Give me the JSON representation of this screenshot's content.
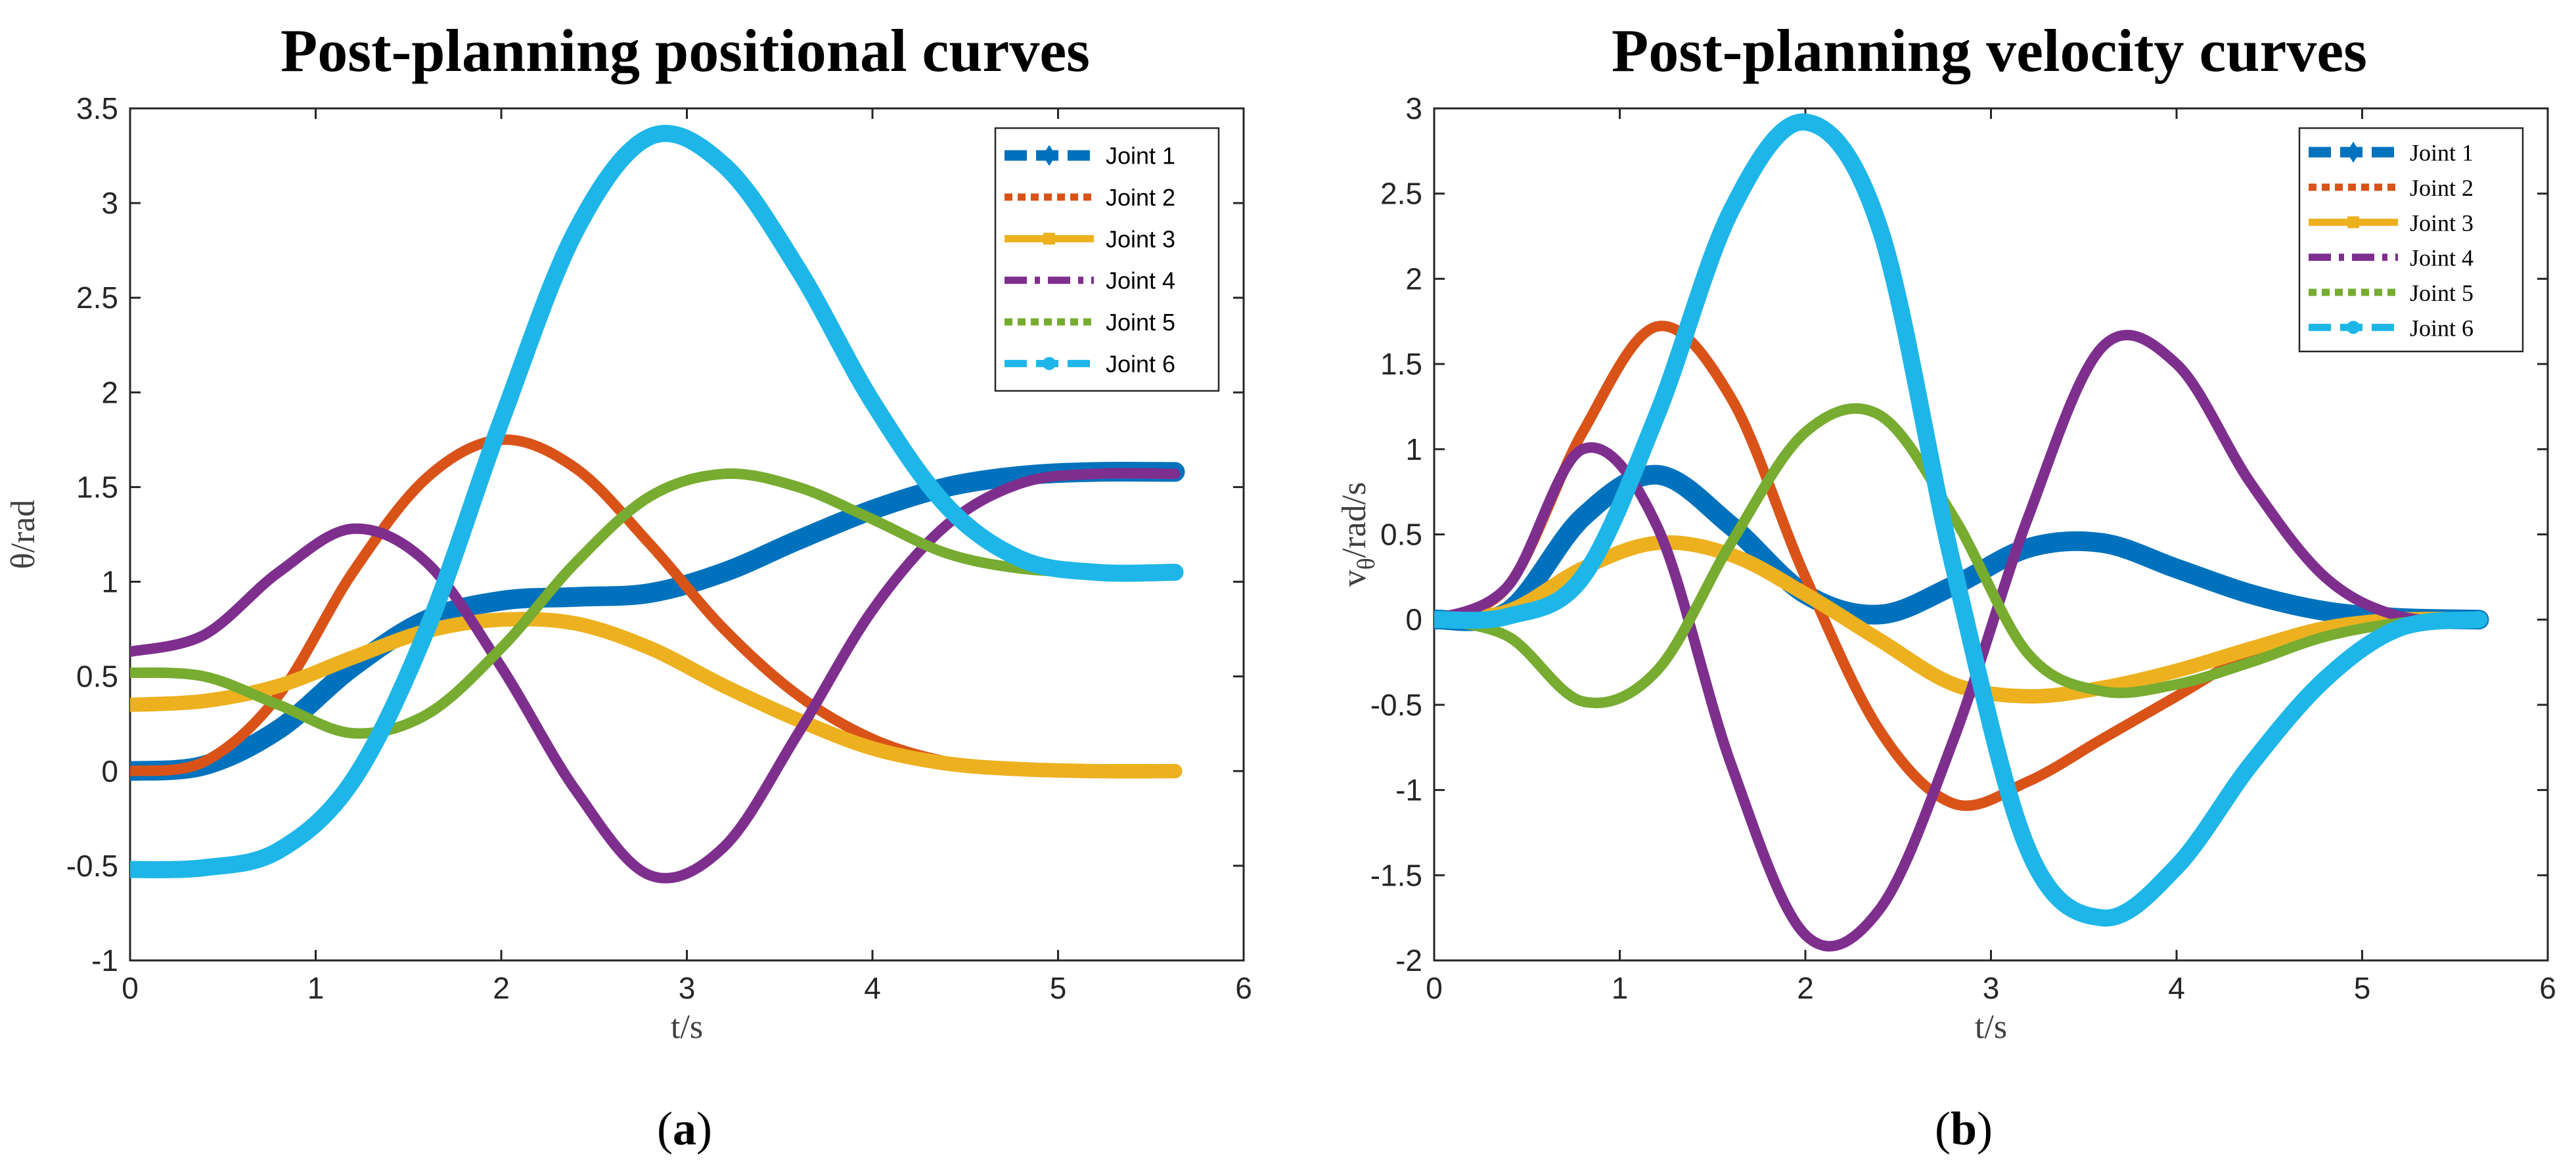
{
  "chart_data": [
    {
      "type": "line",
      "title": "Post-planning positional curves",
      "xlabel": "t/s",
      "ylabel": "θ/rad",
      "xlim": [
        0,
        6
      ],
      "ylim": [
        -1,
        3.5
      ],
      "xticks": [
        "0",
        "1",
        "2",
        "3",
        "4",
        "5",
        "6"
      ],
      "yticks": [
        "-1",
        "-0.5",
        "0",
        "0.5",
        "1",
        "1.5",
        "2",
        "2.5",
        "3",
        "3.5"
      ],
      "legend_position": "top-right",
      "caption_label": "a",
      "series": [
        {
          "name": "Joint 1",
          "color": "#0072BD",
          "x": [
            0,
            0.4,
            0.8,
            1.2,
            1.6,
            2.0,
            2.4,
            2.8,
            3.2,
            3.6,
            4.0,
            4.4,
            4.8,
            5.2,
            5.63
          ],
          "values": [
            0,
            0.03,
            0.22,
            0.55,
            0.8,
            0.9,
            0.92,
            0.94,
            1.05,
            1.22,
            1.38,
            1.5,
            1.56,
            1.58,
            1.58
          ]
        },
        {
          "name": "Joint 2",
          "color": "#D95319",
          "x": [
            0,
            0.4,
            0.8,
            1.2,
            1.6,
            2.0,
            2.4,
            2.8,
            3.2,
            3.6,
            4.0,
            4.4,
            4.8,
            5.2,
            5.63
          ],
          "values": [
            0,
            0.05,
            0.4,
            1.05,
            1.55,
            1.75,
            1.6,
            1.2,
            0.75,
            0.4,
            0.17,
            0.05,
            0.01,
            0,
            0
          ]
        },
        {
          "name": "Joint 3",
          "color": "#EDB120",
          "x": [
            0,
            0.4,
            0.8,
            1.2,
            1.6,
            2.0,
            2.4,
            2.8,
            3.2,
            3.6,
            4.0,
            4.4,
            4.8,
            5.2,
            5.63
          ],
          "values": [
            0.35,
            0.37,
            0.45,
            0.6,
            0.74,
            0.8,
            0.78,
            0.65,
            0.45,
            0.27,
            0.12,
            0.04,
            0.01,
            0,
            0
          ]
        },
        {
          "name": "Joint 4",
          "color": "#7E2F8E",
          "x": [
            0,
            0.4,
            0.8,
            1.2,
            1.6,
            2.0,
            2.4,
            2.8,
            3.2,
            3.6,
            4.0,
            4.4,
            4.8,
            5.2,
            5.63
          ],
          "values": [
            0.63,
            0.72,
            1.05,
            1.28,
            1.1,
            0.55,
            -0.1,
            -0.55,
            -0.4,
            0.2,
            0.85,
            1.3,
            1.52,
            1.57,
            1.57
          ]
        },
        {
          "name": "Joint 5",
          "color": "#77AC30",
          "x": [
            0,
            0.4,
            0.8,
            1.2,
            1.6,
            2.0,
            2.4,
            2.8,
            3.2,
            3.6,
            4.0,
            4.4,
            4.8,
            5.2,
            5.63
          ],
          "values": [
            0.52,
            0.5,
            0.35,
            0.2,
            0.3,
            0.65,
            1.1,
            1.45,
            1.57,
            1.5,
            1.33,
            1.15,
            1.07,
            1.05,
            1.05
          ]
        },
        {
          "name": "Joint 6",
          "color": "#1EB6E8",
          "x": [
            0,
            0.4,
            0.8,
            1.2,
            1.6,
            2.0,
            2.4,
            2.8,
            3.2,
            3.6,
            4.0,
            4.4,
            4.8,
            5.2,
            5.63
          ],
          "values": [
            -0.52,
            -0.51,
            -0.42,
            -0.05,
            0.75,
            1.85,
            2.85,
            3.35,
            3.2,
            2.65,
            1.95,
            1.4,
            1.12,
            1.05,
            1.05
          ]
        }
      ]
    },
    {
      "type": "line",
      "title": "Post-planning velocity curves",
      "xlabel": "t/s",
      "ylabel": "vθ/rad/s",
      "ylabel_main": "v",
      "ylabel_sub": "θ",
      "ylabel_rest": "/rad/s",
      "xlim": [
        0,
        6
      ],
      "ylim": [
        -2,
        3
      ],
      "xticks": [
        "0",
        "1",
        "2",
        "3",
        "4",
        "5",
        "6"
      ],
      "yticks": [
        "-2",
        "-1.5",
        "-1",
        "-0.5",
        "0",
        "0.5",
        "1",
        "1.5",
        "2",
        "2.5",
        "3"
      ],
      "legend_position": "top-right",
      "caption_label": "b",
      "series": [
        {
          "name": "Joint 1",
          "color": "#0072BD",
          "x": [
            0,
            0.4,
            0.8,
            1.2,
            1.6,
            2.0,
            2.4,
            2.8,
            3.2,
            3.6,
            4.0,
            4.4,
            4.8,
            5.2,
            5.63
          ],
          "values": [
            0,
            0.05,
            0.6,
            0.85,
            0.55,
            0.15,
            0.03,
            0.2,
            0.42,
            0.45,
            0.3,
            0.15,
            0.05,
            0.01,
            0
          ]
        },
        {
          "name": "Joint 2",
          "color": "#D95319",
          "x": [
            0,
            0.4,
            0.8,
            1.2,
            1.6,
            2.0,
            2.4,
            2.8,
            3.2,
            3.6,
            4.0,
            4.4,
            4.8,
            5.2,
            5.63
          ],
          "values": [
            0,
            0.2,
            1.1,
            1.72,
            1.3,
            0.25,
            -0.65,
            -1.08,
            -0.95,
            -0.7,
            -0.45,
            -0.2,
            -0.05,
            0,
            0
          ]
        },
        {
          "name": "Joint 3",
          "color": "#EDB120",
          "x": [
            0,
            0.4,
            0.8,
            1.2,
            1.6,
            2.0,
            2.4,
            2.8,
            3.2,
            3.6,
            4.0,
            4.4,
            4.8,
            5.2,
            5.63
          ],
          "values": [
            0,
            0.05,
            0.3,
            0.45,
            0.38,
            0.15,
            -0.12,
            -0.38,
            -0.45,
            -0.4,
            -0.3,
            -0.17,
            -0.05,
            0,
            0
          ]
        },
        {
          "name": "Joint 4",
          "color": "#7E2F8E",
          "x": [
            0,
            0.4,
            0.8,
            1.2,
            1.6,
            2.0,
            2.4,
            2.8,
            3.2,
            3.6,
            4.0,
            4.4,
            4.8,
            5.2,
            5.63
          ],
          "values": [
            0,
            0.2,
            1.0,
            0.55,
            -0.85,
            -1.85,
            -1.7,
            -0.7,
            0.6,
            1.6,
            1.5,
            0.8,
            0.25,
            0.02,
            0
          ]
        },
        {
          "name": "Joint 5",
          "color": "#77AC30",
          "x": [
            0,
            0.4,
            0.8,
            1.2,
            1.6,
            2.0,
            2.4,
            2.8,
            3.2,
            3.6,
            4.0,
            4.4,
            4.8,
            5.2,
            5.63
          ],
          "values": [
            0,
            -0.1,
            -0.48,
            -0.3,
            0.45,
            1.1,
            1.2,
            0.6,
            -0.2,
            -0.42,
            -0.38,
            -0.25,
            -0.1,
            -0.02,
            0
          ]
        },
        {
          "name": "Joint 6",
          "color": "#1EB6E8",
          "x": [
            0,
            0.4,
            0.8,
            1.2,
            1.6,
            2.0,
            2.4,
            2.8,
            3.2,
            3.6,
            4.0,
            4.4,
            4.8,
            5.2,
            5.63
          ],
          "values": [
            0,
            0.02,
            0.25,
            1.2,
            2.4,
            2.92,
            2.3,
            0.3,
            -1.35,
            -1.75,
            -1.45,
            -0.85,
            -0.35,
            -0.05,
            0
          ]
        }
      ]
    }
  ]
}
